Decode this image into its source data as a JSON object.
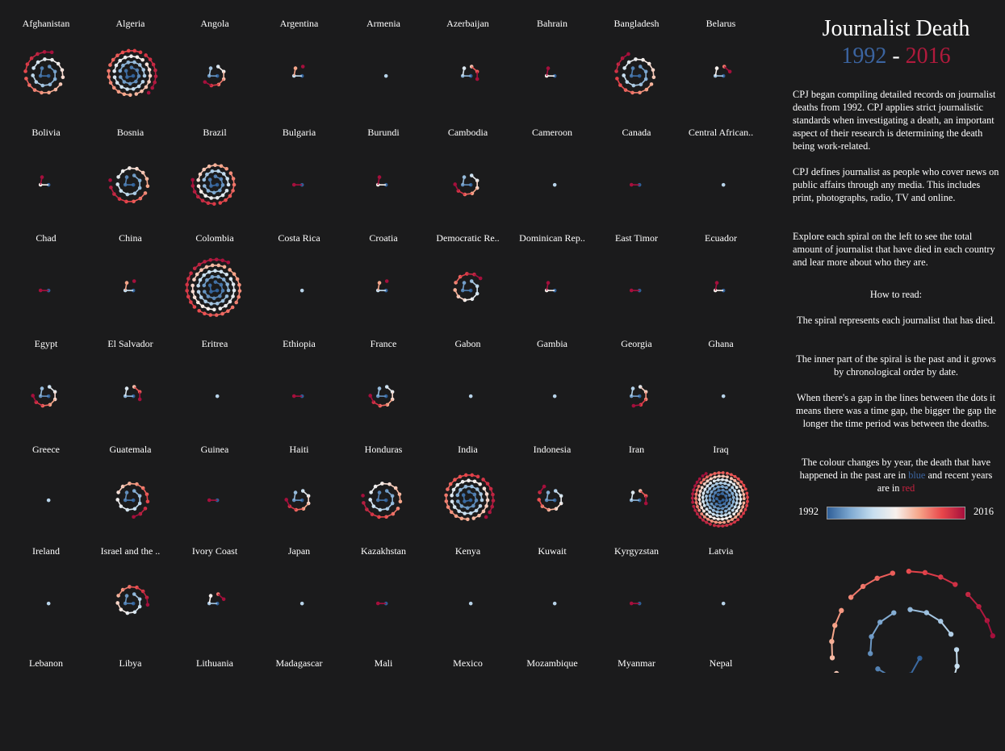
{
  "header": {
    "title": "Journalist Death",
    "year_start": "1992",
    "dash": "-",
    "year_end": "2016"
  },
  "description": {
    "p1": "CPJ began compiling detailed records on journalist deaths from 1992. CPJ applies strict journalistic standards when investigating a death, an important aspect of their research is determining the death being work-related.",
    "p2": "CPJ defines journalist as people who cover news on public affairs through any media. This includes print, photographs, radio, TV and online.",
    "p3": "Explore each spiral on the left to see the total amount of journalist that have died in each country and lear more about who they are.",
    "how_title": "How to read:",
    "h1": "The spiral represents each journalist that has died.",
    "h2": "The inner part of the spiral is the past and it grows by chronological order by date.",
    "h3": "When there's a gap in the lines between the dots it means there was a time gap, the bigger the gap the longer the time period was between the deaths.",
    "h4_a": "The colour changes by year, the death that have happened in the past are in ",
    "h4_blue": "blue",
    "h4_b": " and recent years are in ",
    "h4_red": "red"
  },
  "legend": {
    "min": "1992",
    "max": "2016",
    "colors": [
      "#2f5f98",
      "#7ea9d1",
      "#c7dff0",
      "#f7f0ec",
      "#f6a68a",
      "#e8474b",
      "#a50f3c"
    ]
  },
  "chart_data": {
    "type": "scatter",
    "subtype": "small-multiple spirals",
    "color_scale": {
      "domain": [
        1992,
        2016
      ],
      "low": "#2f5f98",
      "high": "#a50f3c"
    },
    "countries": [
      {
        "name": "Afghanistan",
        "count": 30
      },
      {
        "name": "Algeria",
        "count": 60
      },
      {
        "name": "Angola",
        "count": 9
      },
      {
        "name": "Argentina",
        "count": 4
      },
      {
        "name": "Armenia",
        "count": 1
      },
      {
        "name": "Azerbaijan",
        "count": 6
      },
      {
        "name": "Bahrain",
        "count": 3
      },
      {
        "name": "Bangladesh",
        "count": 28
      },
      {
        "name": "Belarus",
        "count": 5
      },
      {
        "name": "Bolivia",
        "count": 3
      },
      {
        "name": "Bosnia",
        "count": 25
      },
      {
        "name": "Brazil",
        "count": 45
      },
      {
        "name": "Bulgaria",
        "count": 2
      },
      {
        "name": "Burundi",
        "count": 3
      },
      {
        "name": "Cambodia",
        "count": 10
      },
      {
        "name": "Cameroon",
        "count": 1
      },
      {
        "name": "Canada",
        "count": 2
      },
      {
        "name": "Central African..",
        "count": 1
      },
      {
        "name": "Chad",
        "count": 2
      },
      {
        "name": "China",
        "count": 4
      },
      {
        "name": "Colombia",
        "count": 80
      },
      {
        "name": "Costa Rica",
        "count": 1
      },
      {
        "name": "Croatia",
        "count": 4
      },
      {
        "name": "Democratic Re..",
        "count": 15
      },
      {
        "name": "Dominican Rep..",
        "count": 3
      },
      {
        "name": "East Timor",
        "count": 2
      },
      {
        "name": "Ecuador",
        "count": 3
      },
      {
        "name": "Egypt",
        "count": 10
      },
      {
        "name": "El Salvador",
        "count": 6
      },
      {
        "name": "Eritrea",
        "count": 1
      },
      {
        "name": "Ethiopia",
        "count": 2
      },
      {
        "name": "France",
        "count": 10
      },
      {
        "name": "Gabon",
        "count": 1
      },
      {
        "name": "Gambia",
        "count": 1
      },
      {
        "name": "Georgia",
        "count": 8
      },
      {
        "name": "Ghana",
        "count": 1
      },
      {
        "name": "Greece",
        "count": 1
      },
      {
        "name": "Guatemala",
        "count": 20
      },
      {
        "name": "Guinea",
        "count": 2
      },
      {
        "name": "Haiti",
        "count": 10
      },
      {
        "name": "Honduras",
        "count": 25
      },
      {
        "name": "India",
        "count": 60
      },
      {
        "name": "Indonesia",
        "count": 12
      },
      {
        "name": "Iran",
        "count": 6
      },
      {
        "name": "Iraq",
        "count": 180
      },
      {
        "name": "Ireland",
        "count": 1
      },
      {
        "name": "Israel and the ..",
        "count": 17
      },
      {
        "name": "Ivory Coast",
        "count": 5
      },
      {
        "name": "Japan",
        "count": 1
      },
      {
        "name": "Kazakhstan",
        "count": 2
      },
      {
        "name": "Kenya",
        "count": 1
      },
      {
        "name": "Kuwait",
        "count": 1
      },
      {
        "name": "Kyrgyzstan",
        "count": 2
      },
      {
        "name": "Latvia",
        "count": 1
      },
      {
        "name": "Lebanon",
        "count": 0
      },
      {
        "name": "Libya",
        "count": 0
      },
      {
        "name": "Lithuania",
        "count": 0
      },
      {
        "name": "Madagascar",
        "count": 0
      },
      {
        "name": "Mali",
        "count": 0
      },
      {
        "name": "Mexico",
        "count": 0
      },
      {
        "name": "Mozambique",
        "count": 0
      },
      {
        "name": "Myanmar",
        "count": 0
      },
      {
        "name": "Nepal",
        "count": 0
      }
    ]
  }
}
